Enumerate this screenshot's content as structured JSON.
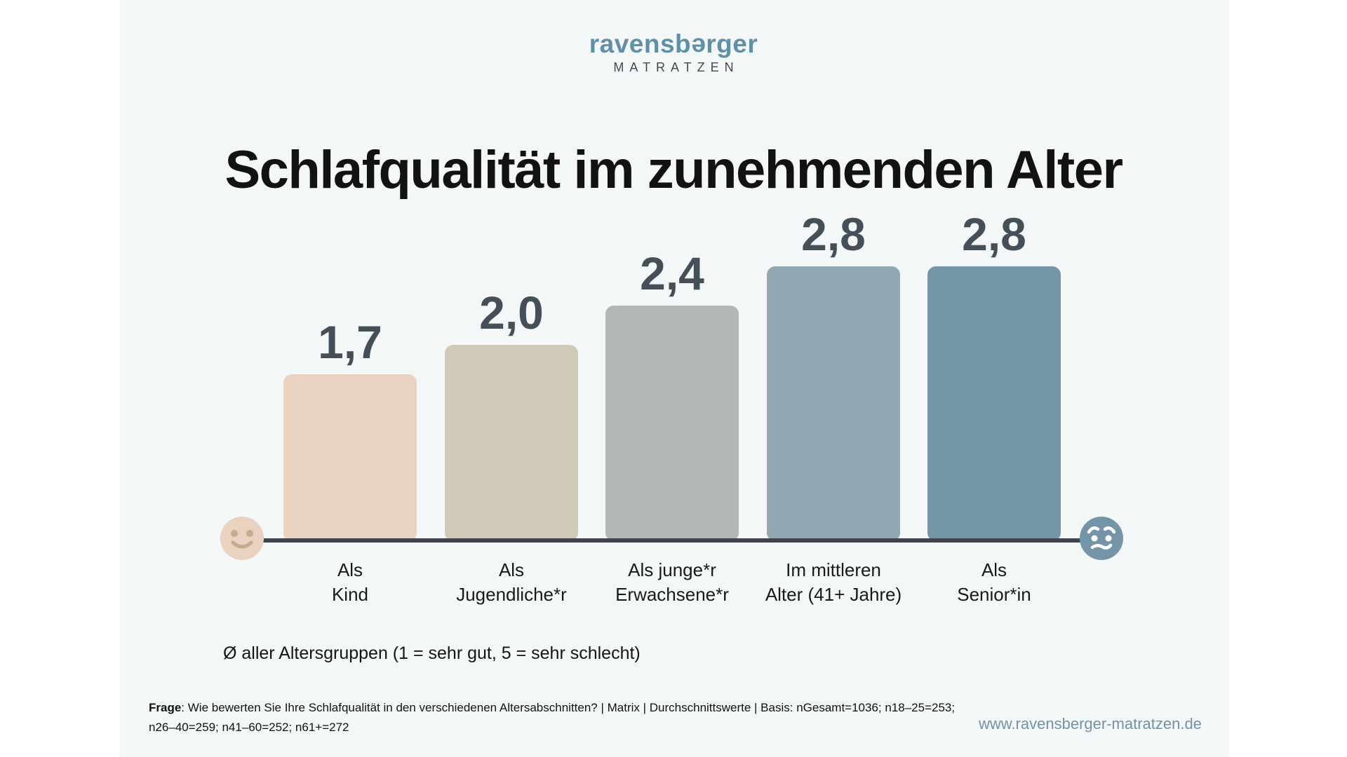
{
  "brand": {
    "wordmark_pre": "ravensb",
    "wordmark_e": "e",
    "wordmark_post": "rger",
    "wordmark_full": "ravensberger",
    "subtitle": "MATRATZEN",
    "color": "#6090a8"
  },
  "title": "Schlafqualität im zunehmenden Alter",
  "chart_data": {
    "type": "bar",
    "title": "Schlafqualität im zunehmenden Alter",
    "categories": [
      "Als Kind",
      "Als Jugendliche*r",
      "Als junge*r Erwachsene*r",
      "Im mittleren Alter (41+ Jahre)",
      "Als Senior*in"
    ],
    "category_lines": [
      [
        "Als",
        "Kind"
      ],
      [
        "Als",
        "Jugendliche*r"
      ],
      [
        "Als junge*r",
        "Erwachsene*r"
      ],
      [
        "Im mittleren",
        "Alter (41+ Jahre)"
      ],
      [
        "Als",
        "Senior*in"
      ]
    ],
    "values": [
      1.7,
      2.0,
      2.4,
      2.8,
      2.8
    ],
    "value_labels": [
      "1,7",
      "2,0",
      "2,4",
      "2,8",
      "2,8"
    ],
    "bar_colors": [
      "#e9d2bf",
      "#cfc9ba",
      "#b2b8b5",
      "#92a7b1",
      "#7595a8"
    ],
    "value_label_color": "#454f57",
    "axis_color": "#3e454d",
    "ylim": [
      1,
      5
    ],
    "scale_note": "Ø aller Altersgruppen (1 = sehr gut, 5 = sehr schlecht)",
    "legend": "none",
    "grid": false,
    "endpoints": {
      "left": "happy-face",
      "right": "worried-face"
    }
  },
  "footnote": {
    "prefix": "Frage",
    "line1": ": Wie bewerten Sie Ihre Schlafqualität in den verschiedenen Altersabschnitten? | Matrix | Durchschnittswerte | Basis: nGesamt=1036; n18–25=253;",
    "line2": "n26–40=259; n41–60=252; n61+=272"
  },
  "url": "www.ravensberger-matratzen.de"
}
